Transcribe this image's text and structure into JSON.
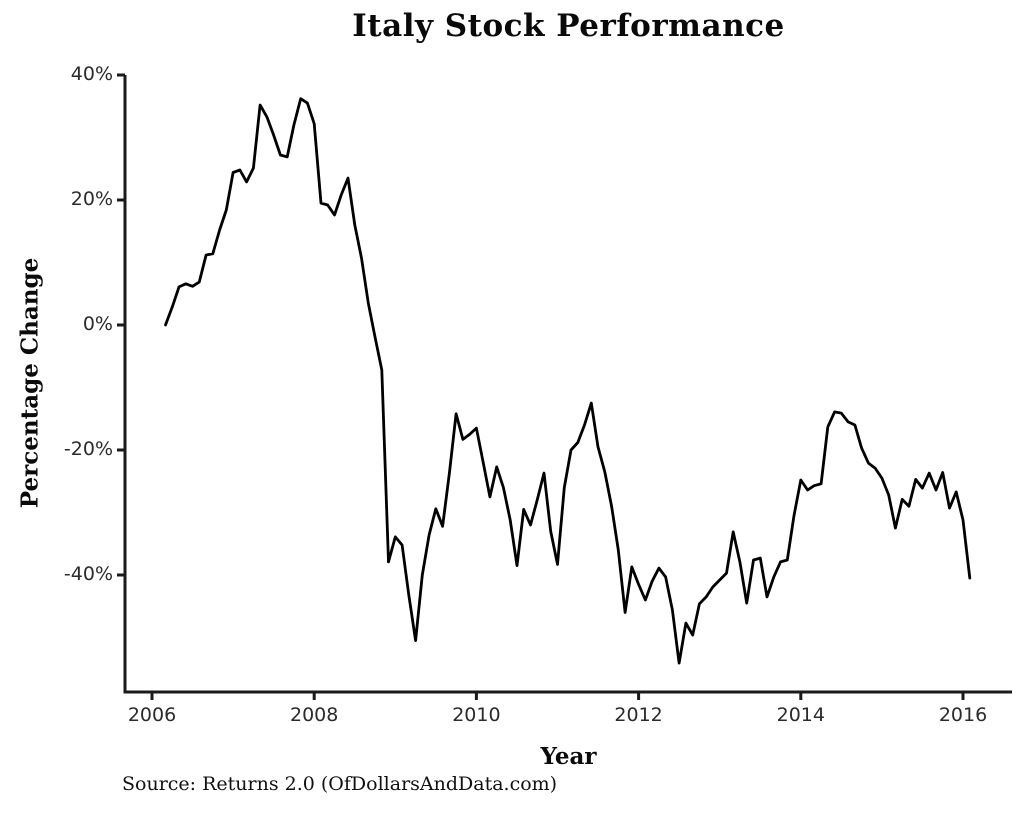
{
  "page": {
    "background": "#ffffff",
    "text_color": "#0a0a0a"
  },
  "chart_data": {
    "type": "line",
    "title": "Italy Stock Performance",
    "xlabel": "Year",
    "ylabel": "Percentage Change",
    "source": "Source: Returns 2.0 (OfDollarsAndData.com)",
    "line_color": "#000000",
    "axis_color": "#1a1a1a",
    "grid": false,
    "legend": "none",
    "x_monthly_start": "2006-02",
    "x_monthly_end": "2016-01",
    "xlim": [
      2005.67,
      2016.62
    ],
    "ylim": [
      -57,
      41
    ],
    "x_ticks": [
      {
        "value": 2006,
        "label": "2006"
      },
      {
        "value": 2008,
        "label": "2008"
      },
      {
        "value": 2010,
        "label": "2010"
      },
      {
        "value": 2012,
        "label": "2012"
      },
      {
        "value": 2014,
        "label": "2014"
      },
      {
        "value": 2016,
        "label": "2016"
      }
    ],
    "y_ticks": [
      {
        "value": 40,
        "label": "40%"
      },
      {
        "value": 20,
        "label": "20%"
      },
      {
        "value": 0,
        "label": "0%"
      },
      {
        "value": -20,
        "label": "-20%"
      },
      {
        "value": -40,
        "label": "-40%"
      }
    ],
    "series": [
      {
        "name": "Italy cumulative percentage change (monthly)",
        "values": [
          0.0,
          2.9,
          6.1,
          6.6,
          6.2,
          6.9,
          11.2,
          11.4,
          15.2,
          18.4,
          24.4,
          24.8,
          22.9,
          25.1,
          35.2,
          33.3,
          30.4,
          27.2,
          26.9,
          32.0,
          36.2,
          35.5,
          32.2,
          19.5,
          19.2,
          17.6,
          20.8,
          23.5,
          16.0,
          10.7,
          3.5,
          -1.9,
          -7.2,
          -37.9,
          -33.9,
          -35.2,
          -43.2,
          -50.5,
          -40.0,
          -33.6,
          -29.4,
          -32.2,
          -23.7,
          -14.2,
          -18.3,
          -17.5,
          -16.5,
          -22.0,
          -27.5,
          -22.7,
          -26.0,
          -31.2,
          -38.5,
          -29.5,
          -32.0,
          -28.0,
          -23.7,
          -33.0,
          -38.3,
          -26.0,
          -20.0,
          -18.8,
          -16.0,
          -12.5,
          -19.5,
          -23.5,
          -29.0,
          -36.0,
          -46.0,
          -38.7,
          -41.5,
          -44.0,
          -41.0,
          -38.9,
          -40.3,
          -45.6,
          -54.1,
          -47.7,
          -49.6,
          -44.6,
          -43.5,
          -41.9,
          -40.8,
          -39.7,
          -33.1,
          -38.0,
          -44.5,
          -37.6,
          -37.3,
          -43.5,
          -40.3,
          -37.9,
          -37.6,
          -30.5,
          -24.8,
          -26.4,
          -25.7,
          -25.4,
          -16.3,
          -13.9,
          -14.1,
          -15.5,
          -16.0,
          -19.7,
          -22.1,
          -22.9,
          -24.5,
          -27.2,
          -32.5,
          -27.9,
          -29.0,
          -24.7,
          -26.1,
          -23.7,
          -26.4,
          -23.6,
          -29.3,
          -26.7,
          -31.2,
          -40.5
        ]
      }
    ]
  }
}
